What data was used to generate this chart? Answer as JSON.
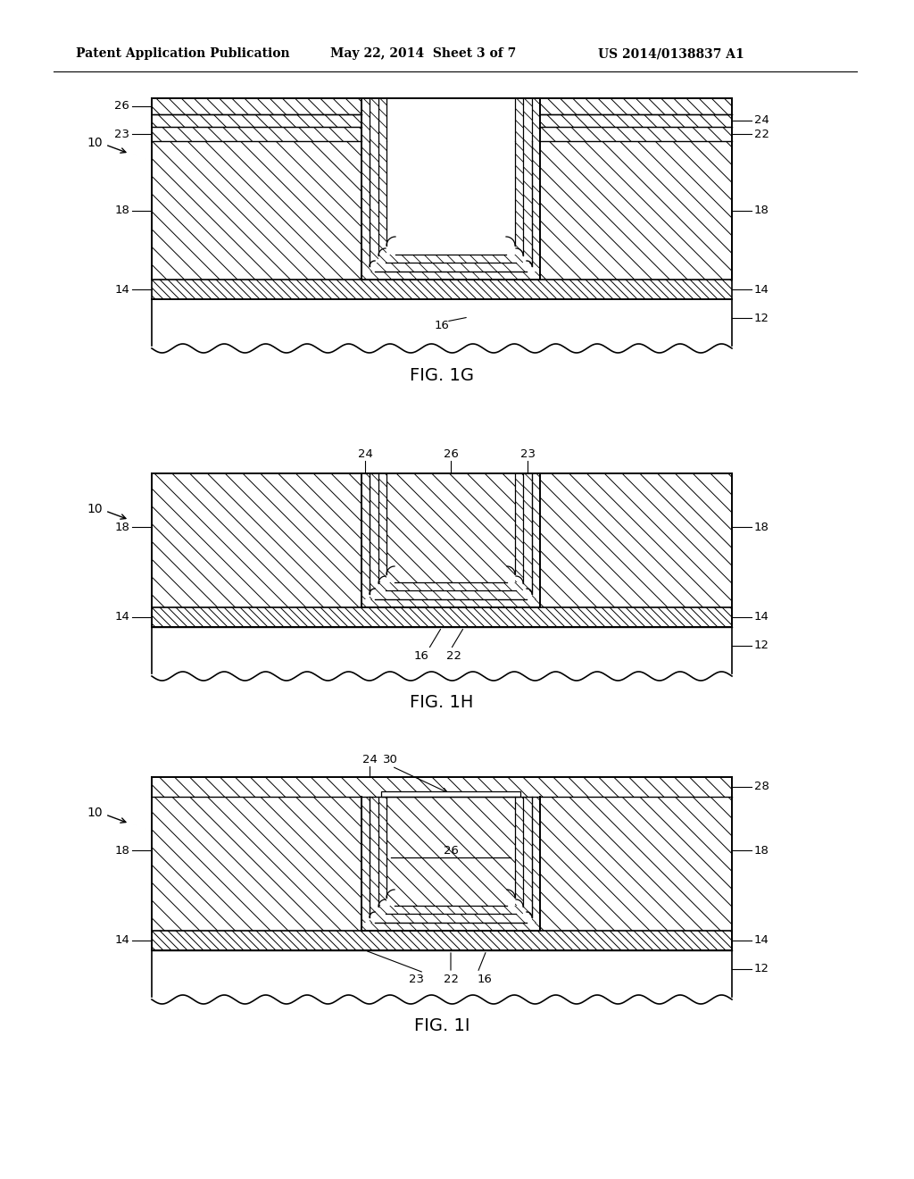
{
  "header_left": "Patent Application Publication",
  "header_mid": "May 22, 2014  Sheet 3 of 7",
  "header_right": "US 2014/0138837 A1",
  "bg_color": "#ffffff",
  "line_color": "#000000"
}
